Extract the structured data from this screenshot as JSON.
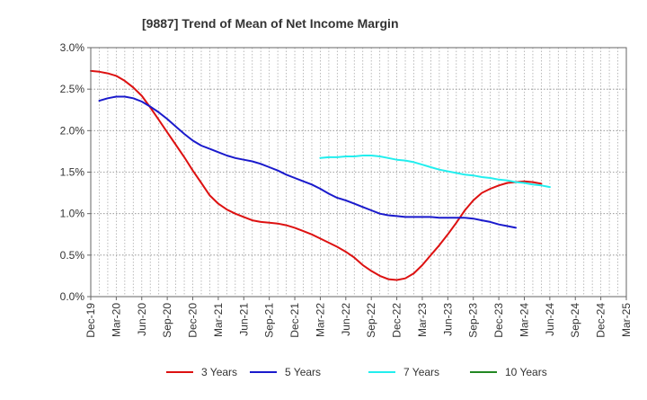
{
  "chart_data": {
    "type": "line",
    "title": "[9887]  Trend of Mean of Net Income Margin",
    "xlabel": "",
    "ylabel": "",
    "ylim": [
      0,
      3.0
    ],
    "y_ticks": [
      "0.0%",
      "0.5%",
      "1.0%",
      "1.5%",
      "2.0%",
      "2.5%",
      "3.0%"
    ],
    "x_ticks": [
      "Dec-19",
      "Mar-20",
      "Jun-20",
      "Sep-20",
      "Dec-20",
      "Mar-21",
      "Jun-21",
      "Sep-21",
      "Dec-21",
      "Mar-22",
      "Jun-22",
      "Sep-22",
      "Dec-22",
      "Mar-23",
      "Jun-23",
      "Sep-23",
      "Dec-23",
      "Mar-24",
      "Jun-24",
      "Sep-24",
      "Dec-24",
      "Mar-25"
    ],
    "grid": true,
    "legend_position": "bottom",
    "series": [
      {
        "name": "3 Years",
        "color": "#dd1111",
        "points": [
          [
            "Dec-19",
            2.72
          ],
          [
            "Jan-20",
            2.71
          ],
          [
            "Feb-20",
            2.69
          ],
          [
            "Mar-20",
            2.66
          ],
          [
            "Apr-20",
            2.6
          ],
          [
            "May-20",
            2.52
          ],
          [
            "Jun-20",
            2.42
          ],
          [
            "Jul-20",
            2.28
          ],
          [
            "Aug-20",
            2.13
          ],
          [
            "Sep-20",
            1.98
          ],
          [
            "Oct-20",
            1.83
          ],
          [
            "Nov-20",
            1.68
          ],
          [
            "Dec-20",
            1.52
          ],
          [
            "Jan-21",
            1.37
          ],
          [
            "Feb-21",
            1.22
          ],
          [
            "Mar-21",
            1.12
          ],
          [
            "Apr-21",
            1.05
          ],
          [
            "May-21",
            1.0
          ],
          [
            "Jun-21",
            0.96
          ],
          [
            "Jul-21",
            0.92
          ],
          [
            "Aug-21",
            0.9
          ],
          [
            "Sep-21",
            0.89
          ],
          [
            "Oct-21",
            0.88
          ],
          [
            "Nov-21",
            0.86
          ],
          [
            "Dec-21",
            0.83
          ],
          [
            "Jan-22",
            0.79
          ],
          [
            "Feb-22",
            0.75
          ],
          [
            "Mar-22",
            0.7
          ],
          [
            "Apr-22",
            0.65
          ],
          [
            "May-22",
            0.6
          ],
          [
            "Jun-22",
            0.54
          ],
          [
            "Jul-22",
            0.47
          ],
          [
            "Aug-22",
            0.38
          ],
          [
            "Sep-22",
            0.31
          ],
          [
            "Oct-22",
            0.25
          ],
          [
            "Nov-22",
            0.21
          ],
          [
            "Dec-22",
            0.2
          ],
          [
            "Jan-23",
            0.22
          ],
          [
            "Feb-23",
            0.28
          ],
          [
            "Mar-23",
            0.38
          ],
          [
            "Apr-23",
            0.5
          ],
          [
            "May-23",
            0.62
          ],
          [
            "Jun-23",
            0.75
          ],
          [
            "Jul-23",
            0.89
          ],
          [
            "Aug-23",
            1.04
          ],
          [
            "Sep-23",
            1.16
          ],
          [
            "Oct-23",
            1.25
          ],
          [
            "Nov-23",
            1.3
          ],
          [
            "Dec-23",
            1.34
          ],
          [
            "Jan-24",
            1.37
          ],
          [
            "Feb-24",
            1.38
          ],
          [
            "Mar-24",
            1.39
          ],
          [
            "Apr-24",
            1.38
          ],
          [
            "May-24",
            1.36
          ]
        ]
      },
      {
        "name": "5 Years",
        "color": "#1a1acc",
        "points": [
          [
            "Jan-20",
            2.36
          ],
          [
            "Feb-20",
            2.39
          ],
          [
            "Mar-20",
            2.41
          ],
          [
            "Apr-20",
            2.41
          ],
          [
            "May-20",
            2.39
          ],
          [
            "Jun-20",
            2.35
          ],
          [
            "Jul-20",
            2.29
          ],
          [
            "Aug-20",
            2.22
          ],
          [
            "Sep-20",
            2.14
          ],
          [
            "Oct-20",
            2.05
          ],
          [
            "Nov-20",
            1.96
          ],
          [
            "Dec-20",
            1.88
          ],
          [
            "Jan-21",
            1.82
          ],
          [
            "Feb-21",
            1.78
          ],
          [
            "Mar-21",
            1.74
          ],
          [
            "Apr-21",
            1.7
          ],
          [
            "May-21",
            1.67
          ],
          [
            "Jun-21",
            1.65
          ],
          [
            "Jul-21",
            1.63
          ],
          [
            "Aug-21",
            1.6
          ],
          [
            "Sep-21",
            1.56
          ],
          [
            "Oct-21",
            1.52
          ],
          [
            "Nov-21",
            1.47
          ],
          [
            "Dec-21",
            1.43
          ],
          [
            "Jan-22",
            1.39
          ],
          [
            "Feb-22",
            1.35
          ],
          [
            "Mar-22",
            1.3
          ],
          [
            "Apr-22",
            1.24
          ],
          [
            "May-22",
            1.19
          ],
          [
            "Jun-22",
            1.16
          ],
          [
            "Jul-22",
            1.12
          ],
          [
            "Aug-22",
            1.08
          ],
          [
            "Sep-22",
            1.04
          ],
          [
            "Oct-22",
            1.0
          ],
          [
            "Nov-22",
            0.98
          ],
          [
            "Dec-22",
            0.97
          ],
          [
            "Jan-23",
            0.96
          ],
          [
            "Feb-23",
            0.96
          ],
          [
            "Mar-23",
            0.96
          ],
          [
            "Apr-23",
            0.96
          ],
          [
            "May-23",
            0.95
          ],
          [
            "Jun-23",
            0.95
          ],
          [
            "Jul-23",
            0.95
          ],
          [
            "Aug-23",
            0.95
          ],
          [
            "Sep-23",
            0.94
          ],
          [
            "Oct-23",
            0.92
          ],
          [
            "Nov-23",
            0.9
          ],
          [
            "Dec-23",
            0.87
          ],
          [
            "Jan-24",
            0.85
          ],
          [
            "Feb-24",
            0.83
          ]
        ]
      },
      {
        "name": "7 Years",
        "color": "#22eeee",
        "points": [
          [
            "Mar-22",
            1.67
          ],
          [
            "Apr-22",
            1.68
          ],
          [
            "May-22",
            1.68
          ],
          [
            "Jun-22",
            1.69
          ],
          [
            "Jul-22",
            1.69
          ],
          [
            "Aug-22",
            1.7
          ],
          [
            "Sep-22",
            1.7
          ],
          [
            "Oct-22",
            1.69
          ],
          [
            "Nov-22",
            1.67
          ],
          [
            "Dec-22",
            1.65
          ],
          [
            "Jan-23",
            1.64
          ],
          [
            "Feb-23",
            1.62
          ],
          [
            "Mar-23",
            1.59
          ],
          [
            "Apr-23",
            1.56
          ],
          [
            "May-23",
            1.53
          ],
          [
            "Jun-23",
            1.51
          ],
          [
            "Jul-23",
            1.49
          ],
          [
            "Aug-23",
            1.47
          ],
          [
            "Sep-23",
            1.46
          ],
          [
            "Oct-23",
            1.44
          ],
          [
            "Nov-23",
            1.43
          ],
          [
            "Dec-23",
            1.41
          ],
          [
            "Jan-24",
            1.4
          ],
          [
            "Feb-24",
            1.38
          ],
          [
            "Mar-24",
            1.37
          ],
          [
            "Apr-24",
            1.35
          ],
          [
            "May-24",
            1.34
          ],
          [
            "Jun-24",
            1.32
          ]
        ]
      },
      {
        "name": "10 Years",
        "color": "#228822",
        "points": []
      }
    ]
  }
}
